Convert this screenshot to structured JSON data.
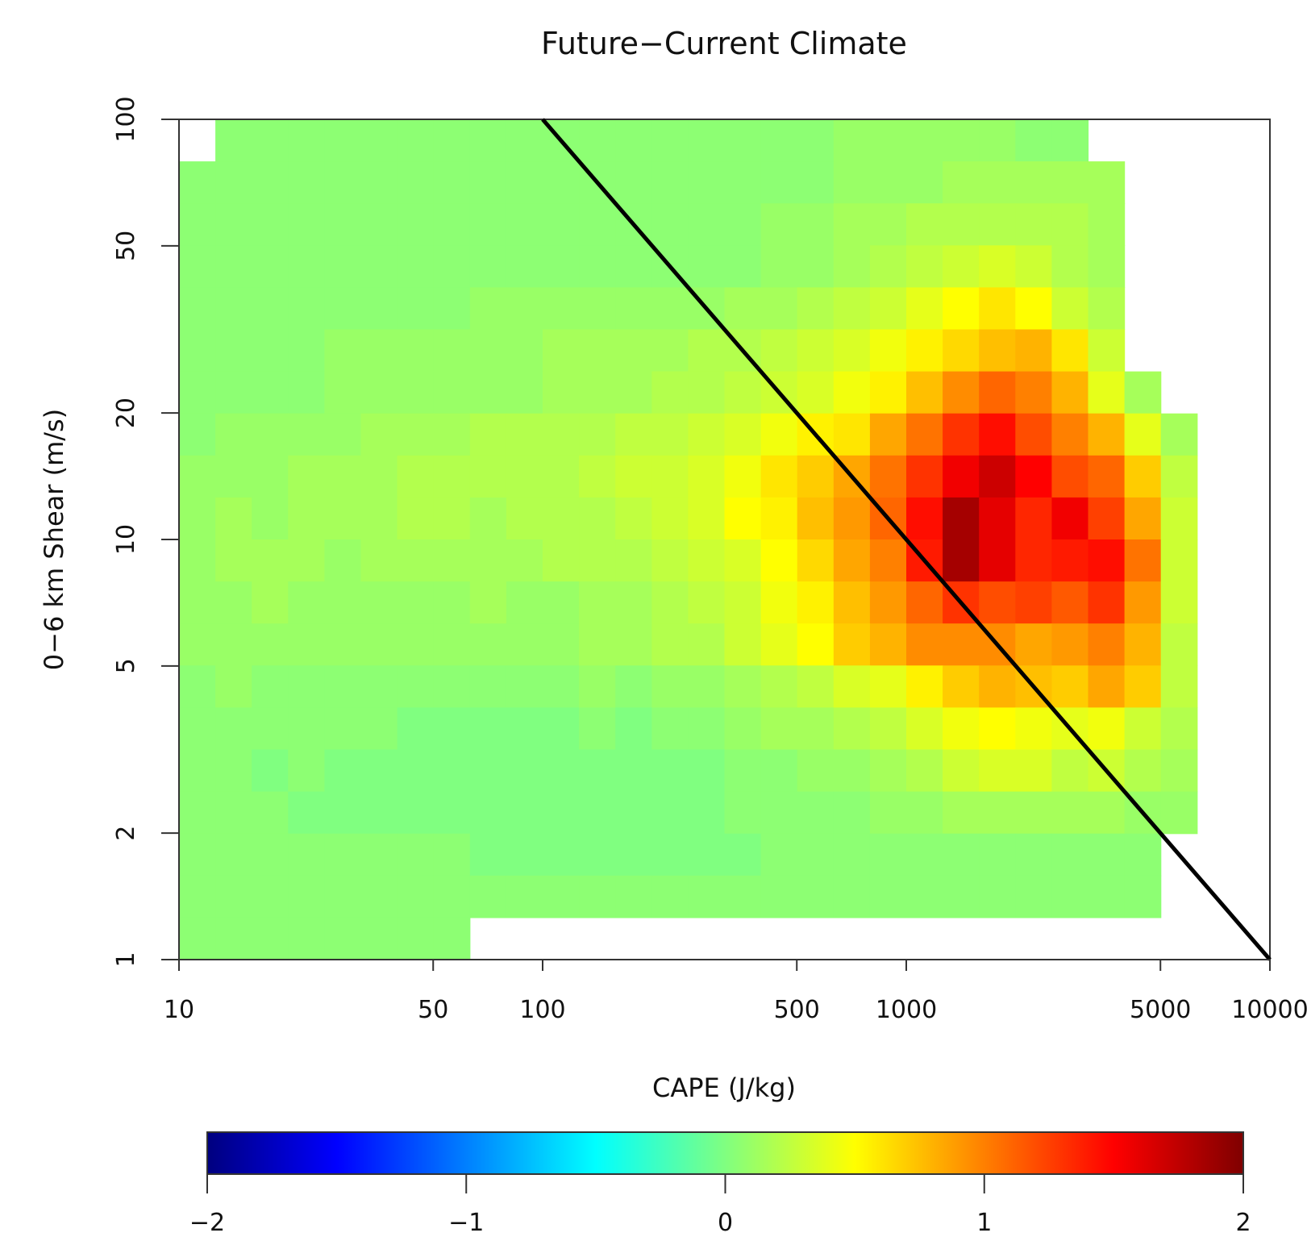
{
  "chart_data": {
    "type": "heatmap",
    "title": "Future−Current Climate",
    "xlabel": "CAPE (J/kg)",
    "ylabel": "0−6 km Shear (m/s)",
    "x_scale": "log",
    "y_scale": "log",
    "xlim": [
      10,
      10000
    ],
    "ylim": [
      1,
      100
    ],
    "x_ticks": [
      10,
      50,
      100,
      500,
      1000,
      5000,
      10000
    ],
    "x_tick_labels": [
      "10",
      "50",
      "100",
      "500",
      "1000",
      "5000",
      "10000"
    ],
    "y_ticks": [
      1,
      2,
      5,
      10,
      20,
      50,
      100
    ],
    "y_tick_labels": [
      "1",
      "2",
      "5",
      "10",
      "20",
      "50",
      "100"
    ],
    "bin_count_x": 30,
    "bin_count_y": 20,
    "value_range": [
      -2,
      2
    ],
    "cells": [
      [
        1,
        0.05
      ],
      [
        2,
        0.05
      ],
      [
        3,
        0.05
      ],
      [
        4,
        0.05
      ],
      [
        5,
        0.05
      ],
      [
        6,
        0.05
      ],
      [
        7,
        0.05
      ],
      [
        8,
        0.05
      ],
      [
        9,
        0.05
      ],
      [
        10,
        0.05
      ],
      [
        11,
        0.05
      ],
      [
        12,
        0.05
      ],
      [
        13,
        0.05
      ],
      [
        14,
        0.05
      ],
      [
        15,
        0.05
      ],
      [
        16,
        0.05
      ],
      [
        17,
        0.05
      ],
      [
        18,
        0.1
      ],
      [
        19,
        0.1
      ],
      [
        20,
        0.1
      ],
      [
        21,
        0.1
      ],
      [
        22,
        0.1
      ],
      [
        23,
        0.05
      ],
      [
        24,
        0.05
      ],
      [
        0,
        0.05
      ],
      [
        1,
        0.05
      ],
      [
        2,
        0.05
      ],
      [
        3,
        0.05
      ],
      [
        4,
        0.05
      ],
      [
        5,
        0.05
      ],
      [
        6,
        0.05
      ],
      [
        7,
        0.05
      ],
      [
        8,
        0.05
      ],
      [
        9,
        0.05
      ],
      [
        10,
        0.05
      ],
      [
        11,
        0.05
      ],
      [
        12,
        0.05
      ],
      [
        13,
        0.05
      ],
      [
        14,
        0.05
      ],
      [
        15,
        0.05
      ],
      [
        16,
        0.05
      ],
      [
        17,
        0.05
      ],
      [
        18,
        0.1
      ],
      [
        19,
        0.1
      ],
      [
        20,
        0.1
      ],
      [
        21,
        0.15
      ],
      [
        22,
        0.15
      ],
      [
        23,
        0.15
      ],
      [
        24,
        0.15
      ],
      [
        25,
        0.15
      ]
    ],
    "grid": [
      [
        null,
        0.05,
        0.05,
        0.05,
        0.05,
        0.05,
        0.05,
        0.05,
        0.05,
        0.05,
        0.05,
        0.05,
        0.05,
        0.05,
        0.05,
        0.05,
        0.05,
        0.05,
        0.1,
        0.1,
        0.1,
        0.1,
        0.1,
        0.05,
        0.05,
        null,
        null,
        null,
        null,
        null
      ],
      [
        0.05,
        0.05,
        0.05,
        0.05,
        0.05,
        0.05,
        0.05,
        0.05,
        0.05,
        0.05,
        0.05,
        0.05,
        0.05,
        0.05,
        0.05,
        0.05,
        0.05,
        0.05,
        0.1,
        0.1,
        0.1,
        0.15,
        0.15,
        0.15,
        0.15,
        0.15,
        null,
        null,
        null,
        null
      ],
      [
        0.05,
        0.05,
        0.05,
        0.05,
        0.05,
        0.05,
        0.05,
        0.05,
        0.05,
        0.05,
        0.05,
        0.05,
        0.05,
        0.05,
        0.05,
        0.05,
        0.1,
        0.1,
        0.15,
        0.15,
        0.2,
        0.2,
        0.2,
        0.2,
        0.2,
        0.15,
        null,
        null,
        null,
        null
      ],
      [
        0.05,
        0.05,
        0.05,
        0.05,
        0.05,
        0.05,
        0.05,
        0.05,
        0.05,
        0.05,
        0.05,
        0.05,
        0.05,
        0.05,
        0.05,
        0.05,
        0.1,
        0.1,
        0.15,
        0.2,
        0.25,
        0.3,
        0.35,
        0.3,
        0.2,
        0.15,
        null,
        null,
        null,
        null
      ],
      [
        0.05,
        0.05,
        0.05,
        0.05,
        0.05,
        0.05,
        0.05,
        0.05,
        0.1,
        0.1,
        0.1,
        0.1,
        0.1,
        0.1,
        0.1,
        0.15,
        0.15,
        0.2,
        0.25,
        0.3,
        0.4,
        0.5,
        0.6,
        0.5,
        0.3,
        0.2,
        null,
        null,
        null,
        null
      ],
      [
        0.05,
        0.05,
        0.05,
        0.05,
        0.1,
        0.1,
        0.1,
        0.1,
        0.1,
        0.1,
        0.15,
        0.15,
        0.15,
        0.15,
        0.2,
        0.2,
        0.25,
        0.3,
        0.35,
        0.45,
        0.55,
        0.65,
        0.75,
        0.8,
        0.6,
        0.3,
        null,
        null,
        null,
        null
      ],
      [
        0.05,
        0.05,
        0.05,
        0.05,
        0.1,
        0.1,
        0.1,
        0.1,
        0.1,
        0.1,
        0.15,
        0.15,
        0.15,
        0.2,
        0.2,
        0.25,
        0.3,
        0.35,
        0.45,
        0.55,
        0.75,
        0.95,
        1.1,
        1.0,
        0.8,
        0.4,
        0.15,
        null,
        null,
        null
      ],
      [
        0.05,
        0.1,
        0.1,
        0.1,
        0.1,
        0.15,
        0.15,
        0.15,
        0.2,
        0.2,
        0.2,
        0.2,
        0.25,
        0.25,
        0.3,
        0.35,
        0.45,
        0.55,
        0.6,
        0.85,
        1.05,
        1.3,
        1.45,
        1.2,
        1.0,
        0.8,
        0.4,
        0.15,
        null,
        null
      ],
      [
        0.1,
        0.1,
        0.1,
        0.15,
        0.15,
        0.15,
        0.2,
        0.2,
        0.2,
        0.2,
        0.2,
        0.25,
        0.3,
        0.3,
        0.35,
        0.45,
        0.6,
        0.7,
        0.85,
        1.05,
        1.3,
        1.55,
        1.7,
        1.5,
        1.2,
        1.1,
        0.7,
        0.25,
        null,
        null
      ],
      [
        0.1,
        0.15,
        0.1,
        0.15,
        0.15,
        0.15,
        0.2,
        0.2,
        0.15,
        0.2,
        0.2,
        0.2,
        0.25,
        0.3,
        0.35,
        0.5,
        0.55,
        0.75,
        0.9,
        1.1,
        1.45,
        1.85,
        1.6,
        1.35,
        1.55,
        1.25,
        0.85,
        0.3,
        null,
        null
      ],
      [
        0.1,
        0.15,
        0.15,
        0.15,
        0.1,
        0.15,
        0.15,
        0.15,
        0.15,
        0.15,
        0.2,
        0.2,
        0.2,
        0.25,
        0.3,
        0.35,
        0.5,
        0.65,
        0.85,
        1.0,
        1.4,
        1.85,
        1.6,
        1.35,
        1.4,
        1.45,
        1.05,
        0.3,
        null,
        null
      ],
      [
        0.1,
        0.1,
        0.15,
        0.1,
        0.1,
        0.1,
        0.1,
        0.1,
        0.15,
        0.1,
        0.1,
        0.15,
        0.15,
        0.2,
        0.25,
        0.3,
        0.45,
        0.55,
        0.75,
        0.9,
        1.1,
        1.3,
        1.2,
        1.25,
        1.15,
        1.3,
        0.9,
        0.3,
        null,
        null
      ],
      [
        0.1,
        0.1,
        0.1,
        0.1,
        0.1,
        0.1,
        0.1,
        0.1,
        0.1,
        0.1,
        0.1,
        0.15,
        0.15,
        0.2,
        0.2,
        0.3,
        0.4,
        0.5,
        0.7,
        0.8,
        0.95,
        0.95,
        0.95,
        0.85,
        0.9,
        1.0,
        0.8,
        0.25,
        null,
        null
      ],
      [
        0.05,
        0.1,
        0.05,
        0.05,
        0.05,
        0.05,
        0.05,
        0.05,
        0.05,
        0.05,
        0.05,
        0.1,
        0.05,
        0.1,
        0.1,
        0.15,
        0.2,
        0.25,
        0.35,
        0.4,
        0.55,
        0.7,
        0.8,
        0.75,
        0.7,
        0.85,
        0.7,
        0.25,
        null,
        null
      ],
      [
        0.05,
        0.05,
        0.05,
        0.05,
        0.05,
        0.05,
        0.0,
        0.0,
        0.0,
        0.0,
        0.0,
        0.05,
        0.0,
        0.05,
        0.05,
        0.1,
        0.15,
        0.15,
        0.2,
        0.25,
        0.35,
        0.45,
        0.5,
        0.45,
        0.4,
        0.45,
        0.3,
        0.2,
        null,
        null
      ],
      [
        0.05,
        0.05,
        0.0,
        0.05,
        0.0,
        0.0,
        0.0,
        0.0,
        0.0,
        0.0,
        0.0,
        0.0,
        0.0,
        0.0,
        0.0,
        0.05,
        0.05,
        0.1,
        0.1,
        0.15,
        0.2,
        0.3,
        0.35,
        0.35,
        0.25,
        0.3,
        0.2,
        0.15,
        null,
        null
      ],
      [
        0.05,
        0.05,
        0.05,
        0.0,
        0.0,
        0.0,
        0.0,
        0.0,
        0.0,
        0.0,
        0.0,
        0.0,
        0.0,
        0.0,
        0.0,
        0.05,
        0.05,
        0.05,
        0.05,
        0.1,
        0.1,
        0.15,
        0.15,
        0.15,
        0.15,
        0.15,
        0.1,
        0.1,
        null,
        null
      ],
      [
        0.05,
        0.05,
        0.05,
        0.05,
        0.05,
        0.05,
        0.05,
        0.05,
        0.0,
        0.0,
        0.0,
        0.0,
        0.0,
        0.0,
        0.0,
        0.0,
        0.05,
        0.05,
        0.05,
        0.05,
        0.05,
        0.05,
        0.05,
        0.05,
        0.05,
        0.05,
        0.05,
        null,
        null,
        null
      ],
      [
        0.05,
        0.05,
        0.05,
        0.05,
        0.05,
        0.05,
        0.05,
        0.05,
        0.05,
        0.05,
        0.05,
        0.05,
        0.05,
        0.05,
        0.05,
        0.05,
        0.05,
        0.05,
        0.05,
        0.05,
        0.05,
        0.05,
        0.05,
        0.05,
        0.05,
        0.05,
        0.05,
        null,
        null,
        null
      ],
      [
        0.05,
        0.05,
        0.05,
        0.05,
        0.05,
        0.05,
        0.05,
        0.05,
        null,
        null,
        null,
        null,
        null,
        null,
        null,
        null,
        null,
        null,
        null,
        null,
        null,
        null,
        null,
        null,
        null,
        null,
        null,
        null,
        null,
        null
      ]
    ],
    "reference_line": {
      "x": [
        100,
        10000
      ],
      "y": [
        100,
        1
      ]
    },
    "colorbar": {
      "ticks": [
        -2,
        -1,
        0,
        1,
        2
      ],
      "tick_labels": [
        "−2",
        "−1",
        "0",
        "1",
        "2"
      ]
    }
  }
}
